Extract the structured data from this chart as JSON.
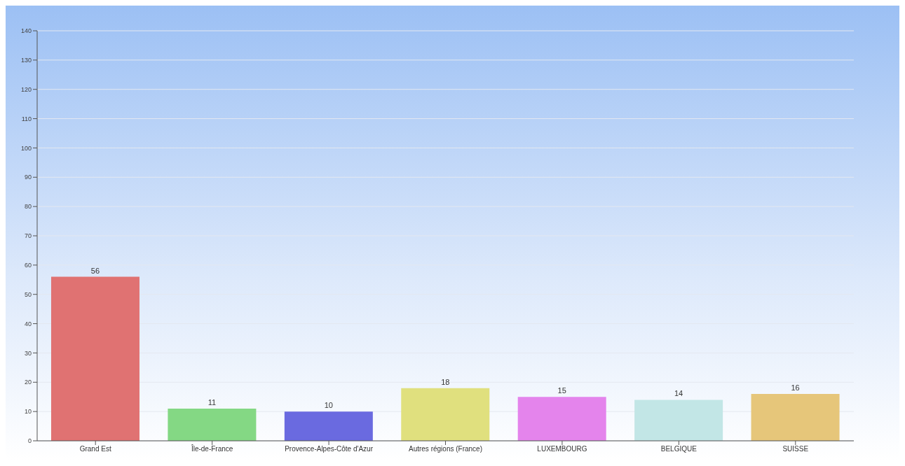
{
  "chart_data": {
    "type": "bar",
    "categories": [
      "Grand Est",
      "Île-de-France",
      "Provence-Alpes-Côte d'Azur",
      "Autres régions (France)",
      "LUXEMBOURG",
      "BELGIQUE",
      "SUISSE"
    ],
    "values": [
      56,
      11,
      10,
      18,
      15,
      14,
      16
    ],
    "colors": [
      "#e07272",
      "#84d884",
      "#6a6ae0",
      "#e0e07e",
      "#e484ec",
      "#c2e6e6",
      "#e6c67a"
    ],
    "ylim": [
      0,
      140
    ],
    "yticks": [
      0,
      10,
      20,
      30,
      40,
      50,
      60,
      70,
      80,
      90,
      100,
      110,
      120,
      130,
      140
    ],
    "grid": "y",
    "data_labels": true
  }
}
